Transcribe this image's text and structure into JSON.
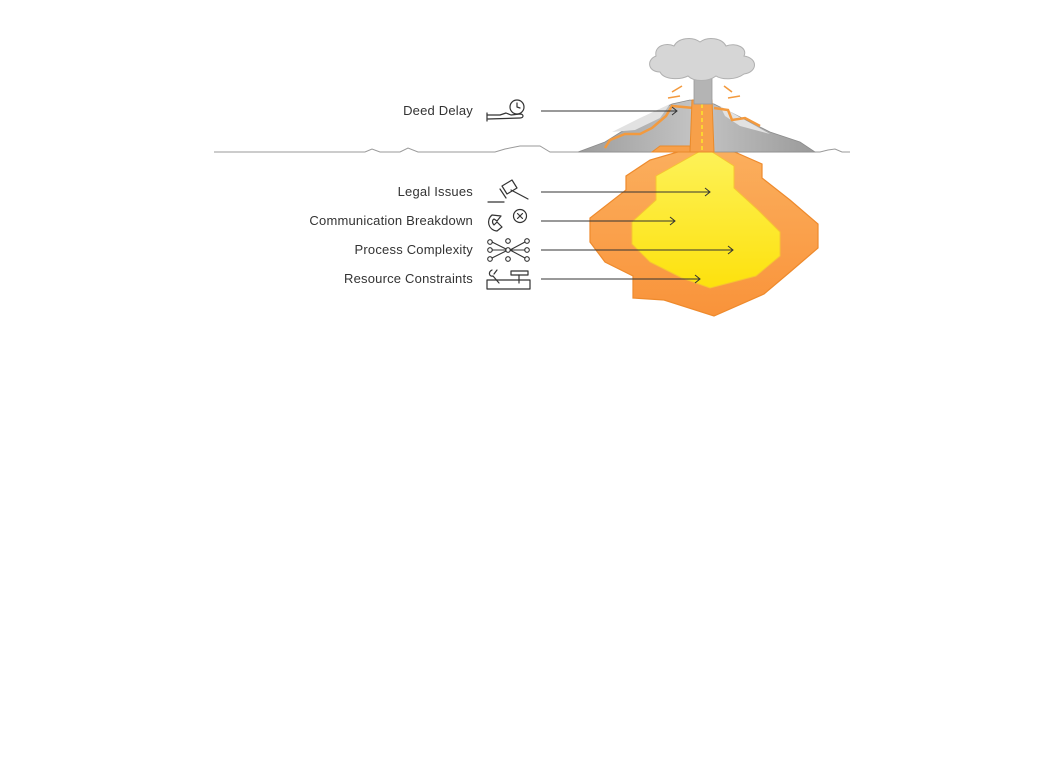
{
  "labels": {
    "deed_delay": "Deed Delay",
    "legal_issues": "Legal Issues",
    "communication_breakdown": "Communication Breakdown",
    "process_complexity": "Process Complexity",
    "resource_constraints": "Resource Constraints"
  },
  "icons": {
    "deed_delay": "hand-clock-icon",
    "legal_issues": "gavel-icon",
    "communication_breakdown": "phone-x-icon",
    "process_complexity": "network-nodes-icon",
    "resource_constraints": "tools-box-icon"
  },
  "colors": {
    "outer_magma": "#fba04e",
    "inner_magma": "#fde52a",
    "smoke": "#d6d6d6",
    "mountain": "#a7a7a7",
    "line": "#333333"
  }
}
